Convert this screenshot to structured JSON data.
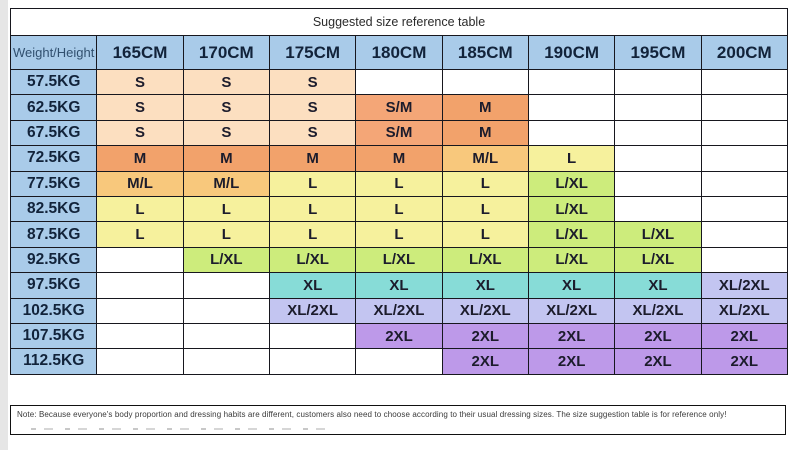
{
  "title": "Suggested size reference table",
  "note": "Note: Because everyone's body proportion and dressing habits are different, customers also need to choose according to their usual dressing sizes. The size suggestion table is for reference only!",
  "colors": {
    "header_bg": "#a9cbe9",
    "grid_line": "#17171e",
    "header_text": "#12233a",
    "cell_text": "#1c1c2c"
  },
  "chart_data": {
    "type": "table",
    "title": "Suggested size reference table",
    "corner_label": "Weight/Height",
    "columns": [
      "165CM",
      "170CM",
      "175CM",
      "180CM",
      "185CM",
      "190CM",
      "195CM",
      "200CM"
    ],
    "rows": [
      {
        "weight": "57.5KG",
        "cells": [
          "S",
          "S",
          "S",
          "",
          "",
          "",
          "",
          ""
        ]
      },
      {
        "weight": "62.5KG",
        "cells": [
          "S",
          "S",
          "S",
          "S/M",
          "M",
          "",
          "",
          ""
        ]
      },
      {
        "weight": "67.5KG",
        "cells": [
          "S",
          "S",
          "S",
          "S/M",
          "M",
          "",
          "",
          ""
        ]
      },
      {
        "weight": "72.5KG",
        "cells": [
          "M",
          "M",
          "M",
          "M",
          "M/L",
          "L",
          "",
          ""
        ]
      },
      {
        "weight": "77.5KG",
        "cells": [
          "M/L",
          "M/L",
          "L",
          "L",
          "L",
          "L/XL",
          "",
          ""
        ]
      },
      {
        "weight": "82.5KG",
        "cells": [
          "L",
          "L",
          "L",
          "L",
          "L",
          "L/XL",
          "",
          ""
        ]
      },
      {
        "weight": "87.5KG",
        "cells": [
          "L",
          "L",
          "L",
          "L",
          "L",
          "L/XL",
          "L/XL",
          ""
        ]
      },
      {
        "weight": "92.5KG",
        "cells": [
          "",
          "L/XL",
          "L/XL",
          "L/XL",
          "L/XL",
          "L/XL",
          "L/XL",
          ""
        ]
      },
      {
        "weight": "97.5KG",
        "cells": [
          "",
          "",
          "XL",
          "XL",
          "XL",
          "XL",
          "XL",
          "XL/2XL"
        ]
      },
      {
        "weight": "102.5KG",
        "cells": [
          "",
          "",
          "XL/2XL",
          "XL/2XL",
          "XL/2XL",
          "XL/2XL",
          "XL/2XL",
          "XL/2XL"
        ]
      },
      {
        "weight": "107.5KG",
        "cells": [
          "",
          "",
          "",
          "2XL",
          "2XL",
          "2XL",
          "2XL",
          "2XL"
        ]
      },
      {
        "weight": "112.5KG",
        "cells": [
          "",
          "",
          "",
          "",
          "2XL",
          "2XL",
          "2XL",
          "2XL"
        ]
      }
    ],
    "size_colors": {
      "S": "#fcdfc0",
      "S/M": "#f4a677",
      "M": "#f2a26b",
      "M/L": "#f8c87c",
      "L": "#f6f19d",
      "L/XL": "#cdec7c",
      "XL": "#87dcd7",
      "XL/2XL": "#c3c5f1",
      "2XL": "#bd99e9"
    },
    "legend_position": "none",
    "grid": true
  }
}
